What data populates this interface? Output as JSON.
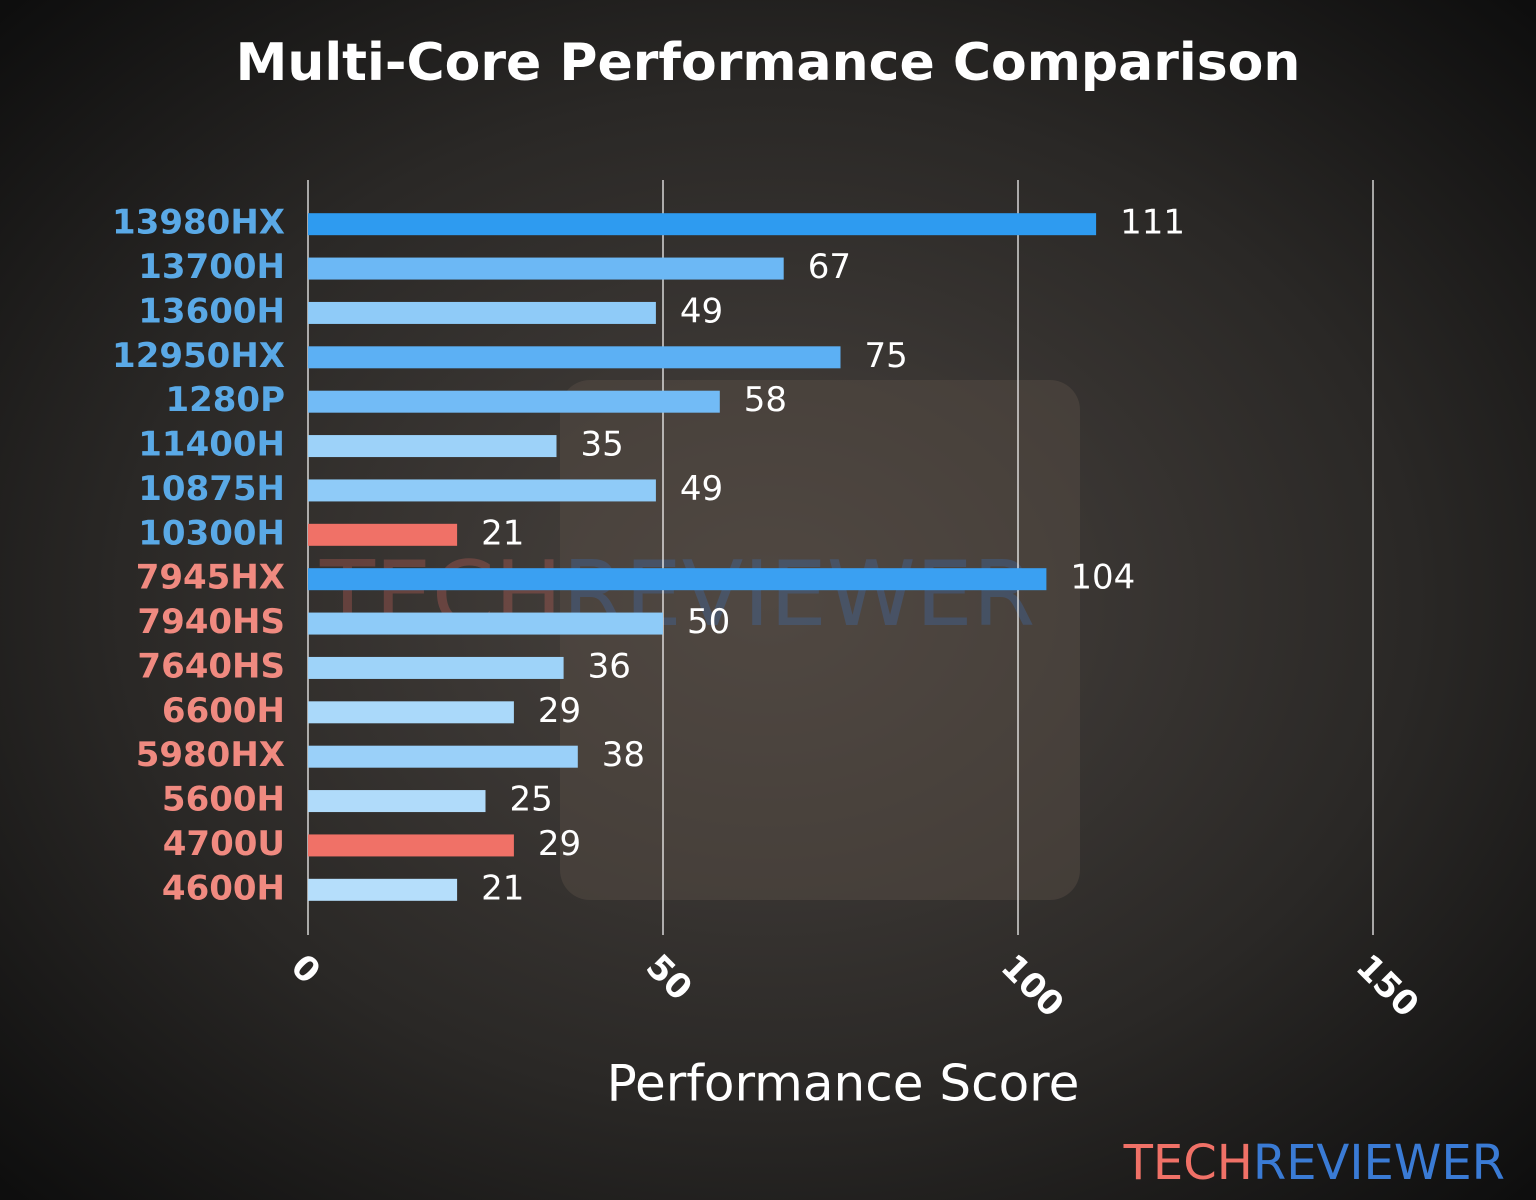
{
  "chart_data": {
    "type": "bar",
    "orientation": "horizontal",
    "title": "Multi-Core Performance Comparison",
    "xlabel": "Performance Score",
    "categories": [
      "13980HX",
      "13700H",
      "13600H",
      "12950HX",
      "1280P",
      "11400H",
      "10875H",
      "10300H",
      "7945HX",
      "7940HS",
      "7640HS",
      "6600H",
      "5980HX",
      "5600H",
      "4700U",
      "4600H"
    ],
    "values": [
      111,
      67,
      49,
      75,
      58,
      35,
      49,
      21,
      104,
      50,
      36,
      29,
      38,
      25,
      29,
      21
    ],
    "colors": [
      "#2e9bf0",
      "#6cb8f5",
      "#8fcbf8",
      "#5cb0f4",
      "#72bbf6",
      "#9dd2f9",
      "#8fcbf8",
      "#f07167",
      "#3aa0f2",
      "#8ecbf8",
      "#9ed3f9",
      "#aad9fa",
      "#9ad0f9",
      "#b0dbfa",
      "#f07167",
      "#b5defb"
    ],
    "category_colors": [
      "#5aa9e6",
      "#5aa9e6",
      "#5aa9e6",
      "#5aa9e6",
      "#5aa9e6",
      "#5aa9e6",
      "#5aa9e6",
      "#5aa9e6",
      "#f08a80",
      "#f08a80",
      "#f08a80",
      "#f08a80",
      "#f08a80",
      "#f08a80",
      "#f08a80",
      "#f08a80"
    ],
    "xlim": [
      0,
      150
    ],
    "xticks": [
      0,
      50,
      100,
      150
    ],
    "grid": true
  },
  "logo": {
    "left": "TECH",
    "right": "REVIEWER"
  }
}
